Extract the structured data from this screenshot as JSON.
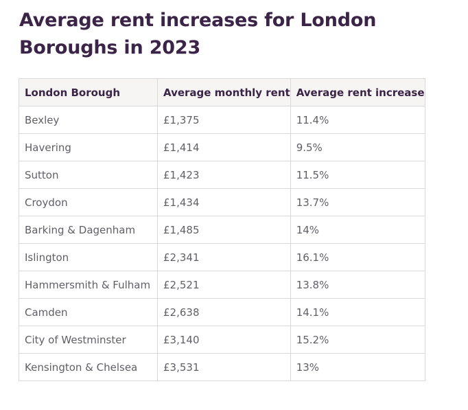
{
  "title": "Average rent increases for London Boroughs in 2023",
  "table": {
    "headers": [
      "London Borough",
      "Average monthly rent",
      "Average rent increase"
    ],
    "rows": [
      [
        "Bexley",
        "£1,375",
        "11.4%"
      ],
      [
        "Havering",
        "£1,414",
        "9.5%"
      ],
      [
        "Sutton",
        "£1,423",
        "11.5%"
      ],
      [
        "Croydon",
        "£1,434",
        "13.7%"
      ],
      [
        "Barking & Dagenham",
        "£1,485",
        "14%"
      ],
      [
        "Islington",
        "£2,341",
        "16.1%"
      ],
      [
        "Hammersmith & Fulham",
        "£2,521",
        "13.8%"
      ],
      [
        "Camden",
        "£2,638",
        "14.1%"
      ],
      [
        "City of Westminster",
        "£3,140",
        "15.2%"
      ],
      [
        "Kensington & Chelsea",
        "£3,531",
        "13%"
      ]
    ]
  },
  "colors": {
    "heading": "#3b2447",
    "cell_text": "#5f5f66",
    "header_bg": "#f6f5f4",
    "border": "#d9d9d9"
  }
}
